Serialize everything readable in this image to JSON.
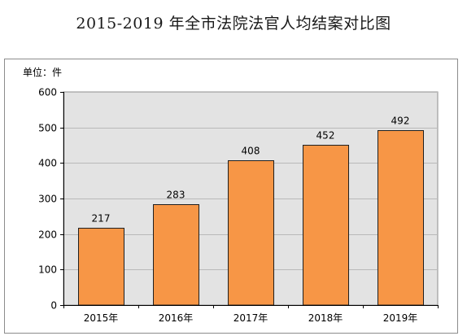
{
  "chart_data": {
    "type": "bar",
    "title": "2015-2019 年全市法院法官人均结案对比图",
    "unit_label": "单位：件",
    "categories": [
      "2015年",
      "2016年",
      "2017年",
      "2018年",
      "2019年"
    ],
    "values": [
      217,
      283,
      408,
      452,
      492
    ],
    "ylim": [
      0,
      600
    ],
    "yticks": [
      0,
      100,
      200,
      300,
      400,
      500,
      600
    ],
    "xlabel": "",
    "ylabel": "",
    "grid": true,
    "colors": {
      "bar_fill": "#f79646",
      "bar_stroke": "#1f1f1f",
      "plot_bg": "#e3e3e3",
      "grid": "#b9b9b9",
      "axis": "#000000"
    }
  }
}
